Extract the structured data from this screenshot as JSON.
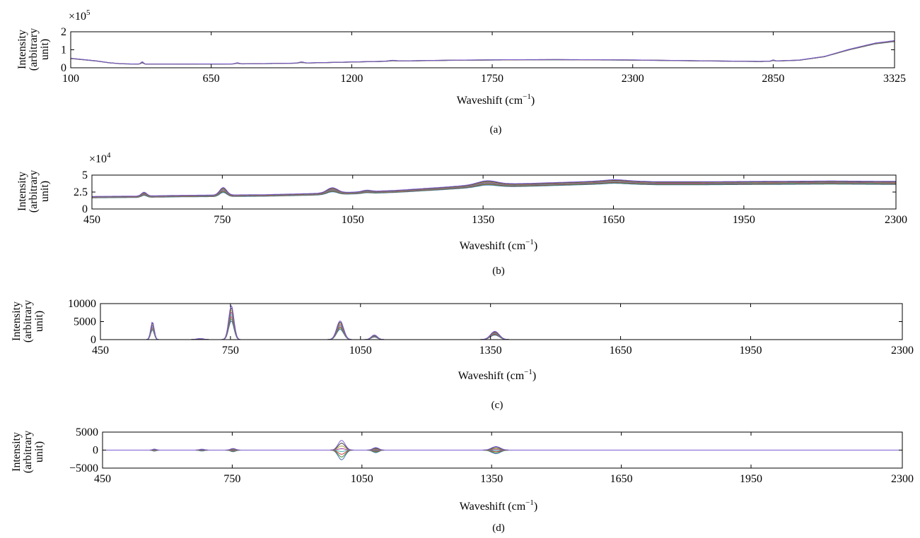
{
  "chart_data": [
    {
      "id": "a",
      "type": "line",
      "panel_label": "(a)",
      "xlabel": "Waveshift (cm",
      "xlabel_sup": "−1",
      "xlabel_end": ")",
      "ylabel_lines": [
        "Intensity",
        "(arbitrary",
        "unit)"
      ],
      "y_multiplier": "×10",
      "y_multiplier_exp": "5",
      "xlim": [
        100,
        3325
      ],
      "ylim": [
        0,
        2
      ],
      "xticks": [
        100,
        650,
        1200,
        1750,
        2300,
        2850,
        3325
      ],
      "xtick_labels": [
        "100",
        "650",
        "1200",
        "1750",
        "2300",
        "2850",
        "3325"
      ],
      "yticks": [
        0,
        1,
        2
      ],
      "ytick_labels": [
        "0",
        "1",
        "2"
      ],
      "series_count": 8,
      "spread": 0.04,
      "profile": {
        "x": [
          100,
          150,
          200,
          250,
          300,
          400,
          500,
          600,
          700,
          800,
          900,
          1000,
          1100,
          1200,
          1300,
          1400,
          1600,
          1800,
          2000,
          2300,
          2600,
          2800,
          2950,
          3050,
          3150,
          3250,
          3325
        ],
        "y": [
          0.52,
          0.45,
          0.38,
          0.28,
          0.22,
          0.2,
          0.2,
          0.21,
          0.21,
          0.22,
          0.24,
          0.26,
          0.29,
          0.32,
          0.35,
          0.38,
          0.42,
          0.44,
          0.45,
          0.43,
          0.38,
          0.35,
          0.42,
          0.62,
          1.02,
          1.35,
          1.48
        ]
      },
      "peaks": [
        {
          "x": 380,
          "h": 0.13,
          "w": 5
        },
        {
          "x": 752,
          "h": 0.06,
          "w": 7
        },
        {
          "x": 1003,
          "h": 0.06,
          "w": 9
        },
        {
          "x": 1360,
          "h": 0.04,
          "w": 14
        },
        {
          "x": 2850,
          "h": 0.06,
          "w": 5
        }
      ]
    },
    {
      "id": "b",
      "type": "line",
      "panel_label": "(b)",
      "xlabel": "Waveshift (cm",
      "xlabel_sup": "−1",
      "xlabel_end": ")",
      "ylabel_lines": [
        "Intensity",
        "(arbitrary",
        "unit)"
      ],
      "y_multiplier": "×10",
      "y_multiplier_exp": "4",
      "xlim": [
        450,
        2300
      ],
      "ylim": [
        0,
        5
      ],
      "xticks": [
        450,
        750,
        1050,
        1350,
        1650,
        1950,
        2300
      ],
      "xtick_labels": [
        "450",
        "750",
        "1050",
        "1350",
        "1650",
        "1950",
        "2300"
      ],
      "yticks": [
        0,
        2.5,
        5
      ],
      "ytick_labels": [
        "0",
        "2.5",
        "5"
      ],
      "series_count": 8,
      "spread": 0.12,
      "profile": {
        "x": [
          450,
          550,
          650,
          750,
          850,
          950,
          1050,
          1150,
          1250,
          1350,
          1450,
          1550,
          1650,
          1750,
          1850,
          2000,
          2150,
          2300
        ],
        "y": [
          1.75,
          1.8,
          1.9,
          1.95,
          2.0,
          2.15,
          2.35,
          2.6,
          3.0,
          3.45,
          3.55,
          3.75,
          3.95,
          3.8,
          3.8,
          3.85,
          3.9,
          3.85
        ]
      },
      "peaks": [
        {
          "x": 570,
          "h": 0.55,
          "w": 6
        },
        {
          "x": 752,
          "h": 1.1,
          "w": 8
        },
        {
          "x": 1003,
          "h": 0.75,
          "w": 12
        },
        {
          "x": 1082,
          "h": 0.2,
          "w": 10
        },
        {
          "x": 1360,
          "h": 0.5,
          "w": 22
        },
        {
          "x": 1655,
          "h": 0.15,
          "w": 25
        }
      ]
    },
    {
      "id": "c",
      "type": "line",
      "panel_label": "(c)",
      "xlabel": "Waveshift (cm",
      "xlabel_sup": "−1",
      "xlabel_end": ")",
      "ylabel_lines": [
        "Intensity",
        "(arbitrary",
        "unit)"
      ],
      "y_multiplier": "",
      "y_multiplier_exp": "",
      "xlim": [
        450,
        2300
      ],
      "ylim": [
        0,
        10000
      ],
      "xticks": [
        450,
        750,
        1050,
        1350,
        1650,
        1950,
        2300
      ],
      "xtick_labels": [
        "450",
        "750",
        "1050",
        "1350",
        "1650",
        "1950",
        "2300"
      ],
      "yticks": [
        0,
        5000,
        10000
      ],
      "ytick_labels": [
        "0",
        "5000",
        "10000"
      ],
      "series_count": 8,
      "spread": 0.35,
      "profile": {
        "x": [
          450,
          2300
        ],
        "y": [
          0,
          0
        ]
      },
      "peaks": [
        {
          "x": 570,
          "h": 5000,
          "w": 4
        },
        {
          "x": 752,
          "h": 9500,
          "w": 6
        },
        {
          "x": 1003,
          "h": 5200,
          "w": 8
        },
        {
          "x": 1082,
          "h": 1300,
          "w": 7
        },
        {
          "x": 1360,
          "h": 2300,
          "w": 10
        },
        {
          "x": 680,
          "h": 300,
          "w": 8
        }
      ]
    },
    {
      "id": "d",
      "type": "line",
      "panel_label": "(d)",
      "xlabel": "Waveshift (cm",
      "xlabel_sup": "−1",
      "xlabel_end": ")",
      "ylabel_lines": [
        "Intensity",
        "(arbitrary",
        "unit)"
      ],
      "y_multiplier": "",
      "y_multiplier_exp": "",
      "xlim": [
        450,
        2300
      ],
      "ylim": [
        -5000,
        5000
      ],
      "xticks": [
        450,
        750,
        1050,
        1350,
        1650,
        1950,
        2300
      ],
      "xtick_labels": [
        "450",
        "750",
        "1050",
        "1350",
        "1650",
        "1950",
        "2300"
      ],
      "yticks": [
        -5000,
        0,
        5000
      ],
      "ytick_labels": [
        "−5000",
        "0",
        "5000"
      ],
      "series_count": 8,
      "spread": 1.0,
      "profile": {
        "x": [
          450,
          2300
        ],
        "y": [
          0,
          0
        ]
      },
      "peaks": [
        {
          "x": 570,
          "h": 300,
          "w": 4
        },
        {
          "x": 680,
          "h": 250,
          "w": 6
        },
        {
          "x": 752,
          "h": 450,
          "w": 6
        },
        {
          "x": 1003,
          "h": 2700,
          "w": 8
        },
        {
          "x": 1082,
          "h": 700,
          "w": 7
        },
        {
          "x": 1360,
          "h": 1000,
          "w": 10
        }
      ],
      "symmetric": true
    }
  ],
  "series_colors": [
    "#3c6fb0",
    "#4a8a3c",
    "#c43c3c",
    "#3cb0b0",
    "#9a3c9a",
    "#b0a03c",
    "#444444",
    "#7a5bd0"
  ]
}
